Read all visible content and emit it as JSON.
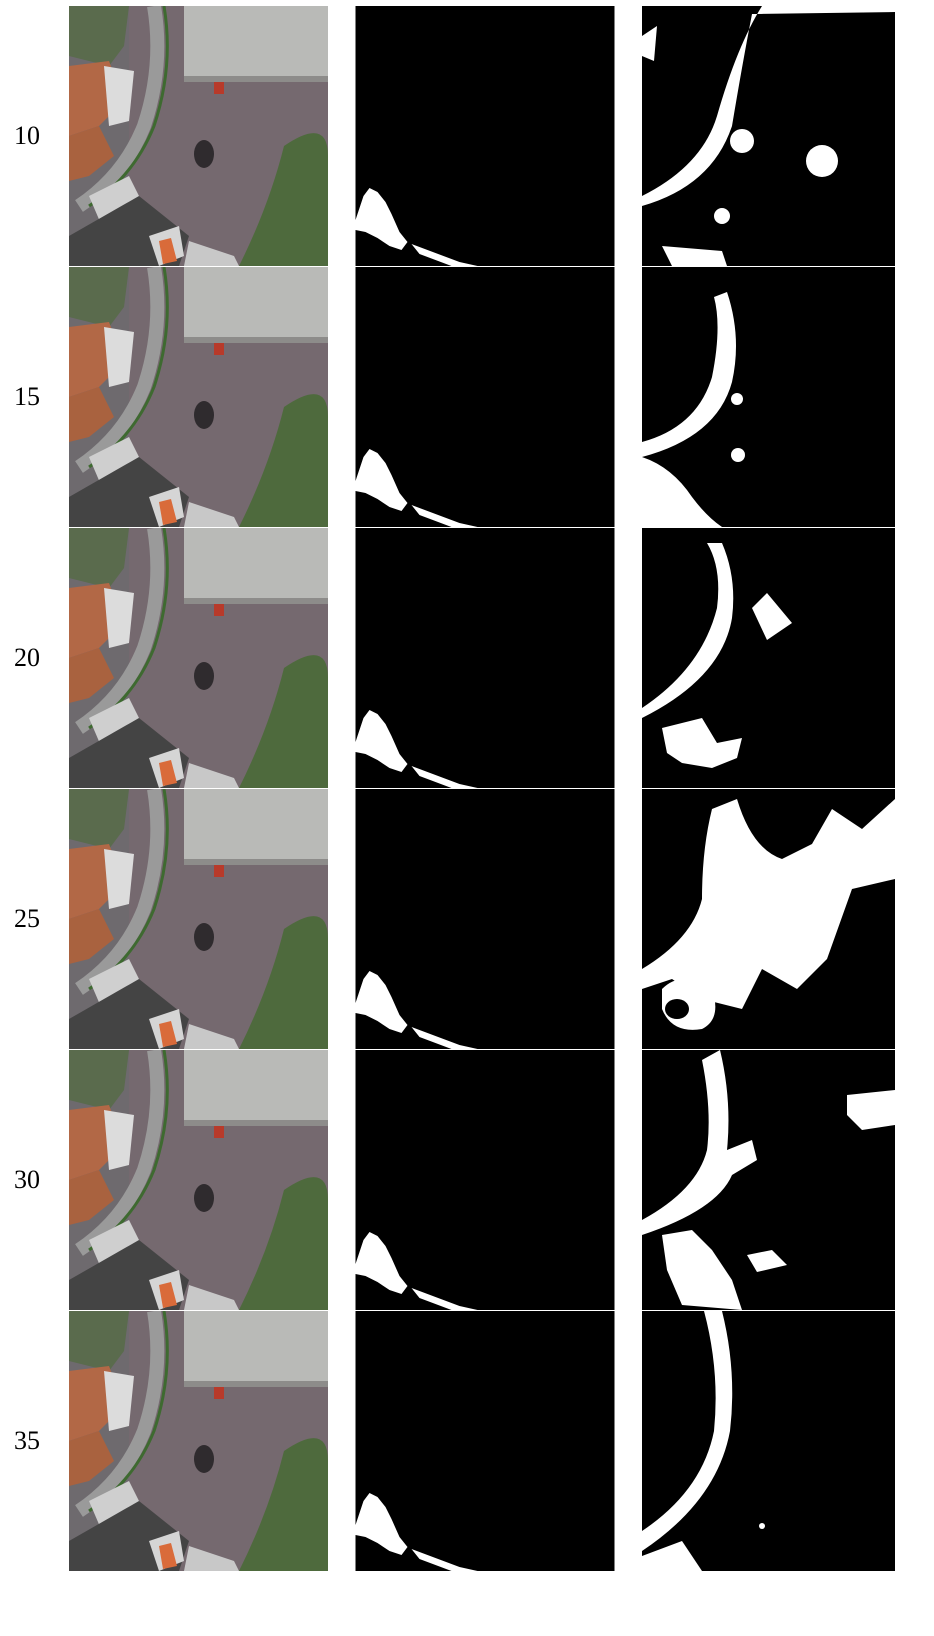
{
  "rows": [
    {
      "label": "10"
    },
    {
      "label": "15"
    },
    {
      "label": "20"
    },
    {
      "label": "25"
    },
    {
      "label": "30"
    },
    {
      "label": "35"
    }
  ]
}
